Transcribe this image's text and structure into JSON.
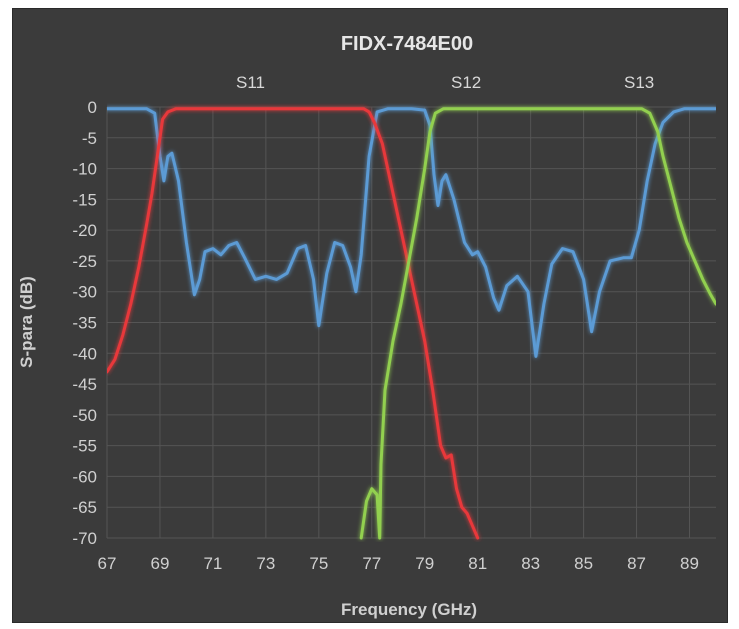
{
  "chart_data": {
    "type": "line",
    "title": "FIDX-7484E00",
    "xlabel": "Frequency (GHz)",
    "ylabel": "S-para (dB)",
    "xlim": [
      67,
      90
    ],
    "ylim": [
      -70,
      0
    ],
    "xticks": [
      67,
      69,
      71,
      73,
      75,
      77,
      79,
      81,
      83,
      85,
      87,
      89
    ],
    "yticks": [
      0,
      -5,
      -10,
      -15,
      -20,
      -25,
      -30,
      -35,
      -40,
      -45,
      -50,
      -55,
      -60,
      -65,
      -70
    ],
    "grid": true,
    "legend_position": "top",
    "series": [
      {
        "name": "S11",
        "color": "#5b9bd5",
        "points": [
          [
            67,
            -0.3
          ],
          [
            68.5,
            -0.3
          ],
          [
            68.8,
            -1
          ],
          [
            69.0,
            -8
          ],
          [
            69.15,
            -12
          ],
          [
            69.3,
            -8
          ],
          [
            69.45,
            -7.5
          ],
          [
            69.7,
            -12
          ],
          [
            70.0,
            -22
          ],
          [
            70.3,
            -30.5
          ],
          [
            70.5,
            -28
          ],
          [
            70.7,
            -23.5
          ],
          [
            71.0,
            -23
          ],
          [
            71.3,
            -24
          ],
          [
            71.6,
            -22.5
          ],
          [
            71.9,
            -22
          ],
          [
            72.2,
            -24.5
          ],
          [
            72.6,
            -28
          ],
          [
            73.0,
            -27.5
          ],
          [
            73.4,
            -28
          ],
          [
            73.8,
            -27
          ],
          [
            74.2,
            -23
          ],
          [
            74.5,
            -22.5
          ],
          [
            74.8,
            -28
          ],
          [
            75.0,
            -35.5
          ],
          [
            75.3,
            -27
          ],
          [
            75.6,
            -22
          ],
          [
            75.9,
            -22.5
          ],
          [
            76.2,
            -26
          ],
          [
            76.4,
            -30
          ],
          [
            76.6,
            -24
          ],
          [
            76.9,
            -8
          ],
          [
            77.2,
            -0.8
          ],
          [
            77.6,
            -0.3
          ],
          [
            78.5,
            -0.3
          ],
          [
            79.0,
            -0.5
          ],
          [
            79.2,
            -3
          ],
          [
            79.35,
            -11
          ],
          [
            79.5,
            -16
          ],
          [
            79.65,
            -12
          ],
          [
            79.8,
            -11
          ],
          [
            80.1,
            -15
          ],
          [
            80.5,
            -22
          ],
          [
            80.8,
            -24
          ],
          [
            81.0,
            -23.5
          ],
          [
            81.3,
            -26
          ],
          [
            81.6,
            -31
          ],
          [
            81.8,
            -33
          ],
          [
            82.1,
            -29
          ],
          [
            82.5,
            -27.5
          ],
          [
            82.9,
            -30
          ],
          [
            83.2,
            -40.5
          ],
          [
            83.5,
            -32
          ],
          [
            83.8,
            -25.5
          ],
          [
            84.2,
            -23
          ],
          [
            84.6,
            -23.5
          ],
          [
            85.0,
            -28
          ],
          [
            85.3,
            -36.5
          ],
          [
            85.6,
            -30
          ],
          [
            86.0,
            -25
          ],
          [
            86.5,
            -24.5
          ],
          [
            86.8,
            -24.5
          ],
          [
            87.1,
            -20
          ],
          [
            87.4,
            -12
          ],
          [
            87.7,
            -6
          ],
          [
            88.0,
            -2.5
          ],
          [
            88.4,
            -0.8
          ],
          [
            88.8,
            -0.3
          ],
          [
            90,
            -0.3
          ]
        ]
      },
      {
        "name": "S12",
        "color": "#e8393b",
        "points": [
          [
            67,
            -43
          ],
          [
            67.3,
            -41
          ],
          [
            67.6,
            -37
          ],
          [
            67.9,
            -32
          ],
          [
            68.2,
            -26
          ],
          [
            68.5,
            -19
          ],
          [
            68.7,
            -14
          ],
          [
            68.9,
            -8
          ],
          [
            69.1,
            -2
          ],
          [
            69.3,
            -0.8
          ],
          [
            69.6,
            -0.3
          ],
          [
            76.7,
            -0.3
          ],
          [
            76.9,
            -0.8
          ],
          [
            77.1,
            -2.5
          ],
          [
            77.4,
            -6
          ],
          [
            77.8,
            -14
          ],
          [
            78.2,
            -22
          ],
          [
            78.6,
            -30
          ],
          [
            79.0,
            -38
          ],
          [
            79.3,
            -46
          ],
          [
            79.6,
            -55
          ],
          [
            79.8,
            -57
          ],
          [
            80.0,
            -56.5
          ],
          [
            80.2,
            -62
          ],
          [
            80.4,
            -65
          ],
          [
            80.6,
            -66
          ],
          [
            80.8,
            -68
          ],
          [
            81.0,
            -70
          ]
        ]
      },
      {
        "name": "S13",
        "color": "#92d050",
        "points": [
          [
            76.6,
            -70
          ],
          [
            76.8,
            -64
          ],
          [
            77.0,
            -62
          ],
          [
            77.2,
            -63
          ],
          [
            77.3,
            -70
          ],
          [
            77.35,
            -58
          ],
          [
            77.5,
            -46
          ],
          [
            77.8,
            -38
          ],
          [
            78.1,
            -32
          ],
          [
            78.4,
            -25
          ],
          [
            78.7,
            -18
          ],
          [
            79.0,
            -10
          ],
          [
            79.2,
            -4
          ],
          [
            79.4,
            -1
          ],
          [
            79.7,
            -0.3
          ],
          [
            87.2,
            -0.3
          ],
          [
            87.5,
            -1
          ],
          [
            87.8,
            -4
          ],
          [
            88.0,
            -8
          ],
          [
            88.3,
            -13
          ],
          [
            88.6,
            -18
          ],
          [
            88.9,
            -22
          ],
          [
            89.2,
            -25
          ],
          [
            89.5,
            -28
          ],
          [
            89.8,
            -30.5
          ],
          [
            90.0,
            -32
          ]
        ]
      }
    ]
  }
}
